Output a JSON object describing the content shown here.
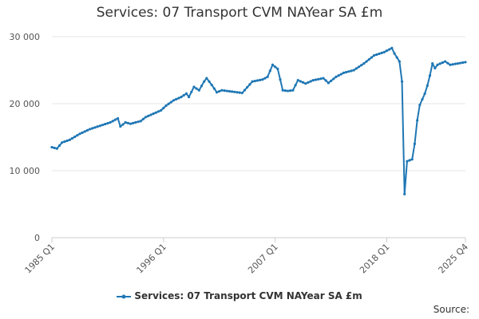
{
  "chart_data": {
    "type": "line",
    "title": "Services: 07 Transport CVM NAYear SA £m",
    "xlabel": "",
    "ylabel": "",
    "ylim": [
      0,
      30000
    ],
    "y_ticks": [
      {
        "value": 0,
        "label": "0"
      },
      {
        "value": 10000,
        "label": "10 000"
      },
      {
        "value": 20000,
        "label": "20 000"
      },
      {
        "value": 30000,
        "label": "30 000"
      }
    ],
    "x_ticks": [
      "1985 Q1",
      "1996 Q1",
      "2007 Q1",
      "2018 Q1",
      "2025 Q4"
    ],
    "start_period": "1985 Q1",
    "end_period": "2025 Q4",
    "grid": "horizontal",
    "legend_position": "bottom",
    "color": "#1f77b4",
    "series": [
      {
        "name": "Services: 07 Transport CVM NAYear SA £m",
        "anchors": [
          [
            "1985 Q1",
            13500
          ],
          [
            "1985 Q3",
            13300
          ],
          [
            "1986 Q1",
            14200
          ],
          [
            "1986 Q4",
            14600
          ],
          [
            "1987 Q4",
            15500
          ],
          [
            "1988 Q4",
            16200
          ],
          [
            "1989 Q4",
            16700
          ],
          [
            "1990 Q4",
            17200
          ],
          [
            "1991 Q3",
            17800
          ],
          [
            "1991 Q4",
            16600
          ],
          [
            "1992 Q2",
            17200
          ],
          [
            "1992 Q4",
            17000
          ],
          [
            "1993 Q4",
            17400
          ],
          [
            "1994 Q2",
            18000
          ],
          [
            "1995 Q1",
            18500
          ],
          [
            "1995 Q4",
            19000
          ],
          [
            "1996 Q2",
            19700
          ],
          [
            "1997 Q1",
            20500
          ],
          [
            "1997 Q4",
            21000
          ],
          [
            "1998 Q2",
            21500
          ],
          [
            "1998 Q3",
            21000
          ],
          [
            "1999 Q1",
            22500
          ],
          [
            "1999 Q3",
            22000
          ],
          [
            "2000 Q1",
            23300
          ],
          [
            "2000 Q2",
            23800
          ],
          [
            "2000 Q4",
            22800
          ],
          [
            "2001 Q2",
            21700
          ],
          [
            "2001 Q4",
            22000
          ],
          [
            "2002 Q4",
            21800
          ],
          [
            "2003 Q4",
            21600
          ],
          [
            "2004 Q4",
            23300
          ],
          [
            "2005 Q4",
            23600
          ],
          [
            "2006 Q2",
            24000
          ],
          [
            "2006 Q4",
            25800
          ],
          [
            "2007 Q2",
            25200
          ],
          [
            "2007 Q4",
            22000
          ],
          [
            "2008 Q2",
            21900
          ],
          [
            "2008 Q4",
            22000
          ],
          [
            "2009 Q2",
            23500
          ],
          [
            "2010 Q1",
            23000
          ],
          [
            "2010 Q4",
            23500
          ],
          [
            "2011 Q4",
            23800
          ],
          [
            "2012 Q2",
            23100
          ],
          [
            "2013 Q1",
            24000
          ],
          [
            "2013 Q4",
            24600
          ],
          [
            "2014 Q4",
            25000
          ],
          [
            "2015 Q4",
            26000
          ],
          [
            "2016 Q4",
            27200
          ],
          [
            "2017 Q4",
            27700
          ],
          [
            "2018 Q3",
            28300
          ],
          [
            "2018 Q4",
            27500
          ],
          [
            "2019 Q2",
            26300
          ],
          [
            "2019 Q3",
            23300
          ],
          [
            "2019 Q4",
            6500
          ],
          [
            "2020 Q1",
            11400
          ],
          [
            "2020 Q3",
            11700
          ],
          [
            "2020 Q4",
            14000
          ],
          [
            "2021 Q1",
            17500
          ],
          [
            "2021 Q2",
            19800
          ],
          [
            "2021 Q4",
            21500
          ],
          [
            "2022 Q1",
            22700
          ],
          [
            "2022 Q2",
            24200
          ],
          [
            "2022 Q3",
            26000
          ],
          [
            "2022 Q4",
            25300
          ],
          [
            "2023 Q1",
            25800
          ],
          [
            "2023 Q4",
            26300
          ],
          [
            "2024 Q2",
            25800
          ],
          [
            "2025 Q1",
            26000
          ],
          [
            "2025 Q4",
            26200
          ]
        ]
      }
    ]
  },
  "legend_label": "Services: 07 Transport CVM NAYear SA £m",
  "source_label": "Source:"
}
